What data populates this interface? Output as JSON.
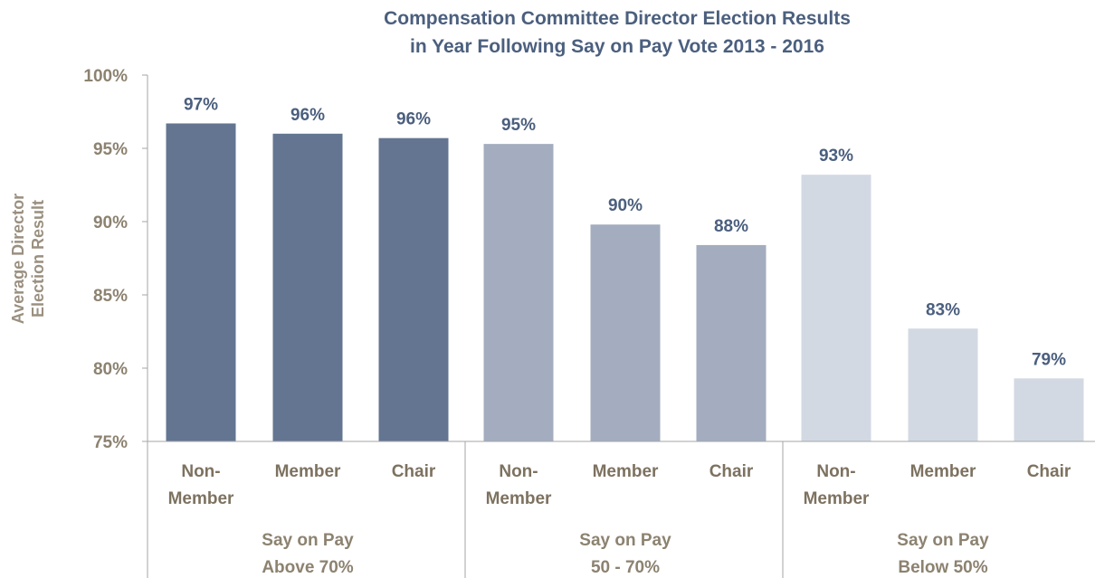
{
  "chart_data": {
    "type": "bar",
    "title": [
      "Compensation Committee Director Election Results",
      "in Year Following Say on Pay Vote 2013 - 2016"
    ],
    "ylabel": [
      "Average Director",
      "Election Result"
    ],
    "ylim": [
      75,
      100
    ],
    "yticks": [
      "75%",
      "80%",
      "85%",
      "90%",
      "95%",
      "100%"
    ],
    "ytick_values": [
      75,
      80,
      85,
      90,
      95,
      100
    ],
    "grid": false,
    "legend": "none",
    "groups": [
      {
        "name": [
          "Say on Pay",
          "Above 70%"
        ],
        "color": "#637591",
        "bars": [
          {
            "category": [
              "Non-",
              "Member"
            ],
            "value": 96.7,
            "label": "97%"
          },
          {
            "category": [
              "Member"
            ],
            "value": 96.0,
            "label": "96%"
          },
          {
            "category": [
              "Chair"
            ],
            "value": 95.7,
            "label": "96%"
          }
        ]
      },
      {
        "name": [
          "Say on Pay",
          "50 - 70%"
        ],
        "color": "#a3adbf",
        "bars": [
          {
            "category": [
              "Non-",
              "Member"
            ],
            "value": 95.3,
            "label": "95%"
          },
          {
            "category": [
              "Member"
            ],
            "value": 89.8,
            "label": "90%"
          },
          {
            "category": [
              "Chair"
            ],
            "value": 88.4,
            "label": "88%"
          }
        ]
      },
      {
        "name": [
          "Say on Pay",
          "Below 50%"
        ],
        "color": "#d3d9e3",
        "bars": [
          {
            "category": [
              "Non-",
              "Member"
            ],
            "value": 93.2,
            "label": "93%"
          },
          {
            "category": [
              "Member"
            ],
            "value": 82.7,
            "label": "83%"
          },
          {
            "category": [
              "Chair"
            ],
            "value": 79.3,
            "label": "79%"
          }
        ]
      }
    ]
  }
}
